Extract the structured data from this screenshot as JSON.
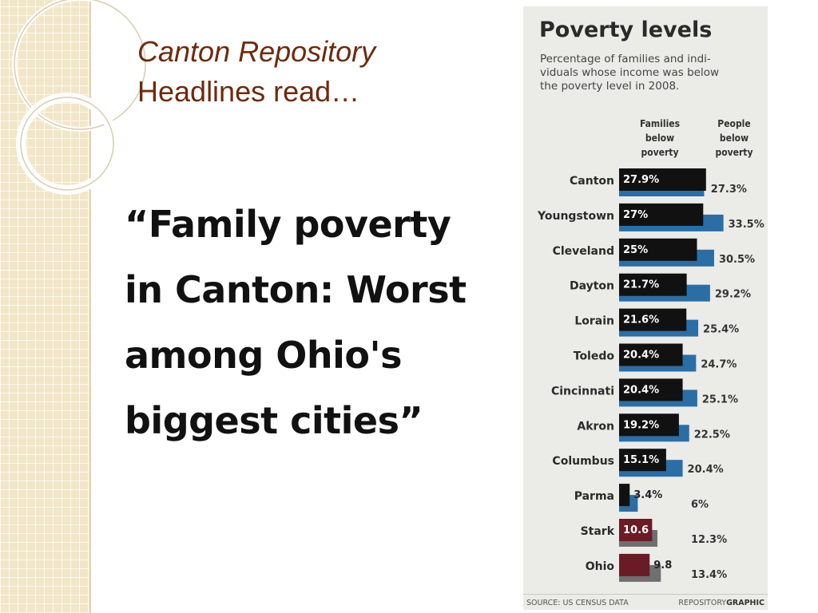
{
  "slide": {
    "title_line1": "Canton Repository",
    "title_line2": "Headlines read…",
    "headline_lines": [
      "“Family poverty",
      "in Canton: Worst",
      "among Ohio's",
      "biggest cities”"
    ]
  },
  "colors": {
    "title": "#6e2a0c",
    "families_bar": "#111111",
    "people_bar": "#2b6ea6",
    "county_state_families_bar": "#6b1b26",
    "county_state_people_bar": "#6f6f6f"
  },
  "chart_data": {
    "type": "bar",
    "title": "Poverty levels",
    "subtitle": "Percentage of families and individuals whose income was below the poverty level in 2008.",
    "subtitle_lines": [
      "Percentage of families and indi-",
      "viduals whose income was below",
      "the poverty level in 2008."
    ],
    "column_headers": {
      "families": [
        "Families",
        "below",
        "poverty"
      ],
      "people": [
        "People",
        "below",
        "poverty"
      ]
    },
    "categories": [
      "Canton",
      "Youngstown",
      "Cleveland",
      "Dayton",
      "Lorain",
      "Toledo",
      "Cincinnati",
      "Akron",
      "Columbus",
      "Parma",
      "Stark",
      "Ohio"
    ],
    "series": [
      {
        "name": "Families below poverty",
        "values": [
          27.9,
          27,
          25,
          21.7,
          21.6,
          20.4,
          20.4,
          19.2,
          15.1,
          3.4,
          10.6,
          9.8
        ],
        "labels": [
          "27.9%",
          "27%",
          "25%",
          "21.7%",
          "21.6%",
          "20.4%",
          "20.4%",
          "19.2%",
          "15.1%",
          "3.4%",
          "10.6",
          "9.8"
        ]
      },
      {
        "name": "People below poverty",
        "values": [
          27.3,
          33.5,
          30.5,
          29.2,
          25.4,
          24.7,
          25.1,
          22.5,
          20.4,
          6,
          12.3,
          13.4
        ],
        "labels": [
          "27.3%",
          "33.5%",
          "30.5%",
          "29.2%",
          "25.4%",
          "24.7%",
          "25.1%",
          "22.5%",
          "20.4%",
          "6%",
          "12.3%",
          "13.4%"
        ]
      }
    ],
    "source": "SOURCE: US CENSUS DATA",
    "credit_prefix": "REPOSITORY",
    "credit_suffix": "GRAPHIC"
  }
}
